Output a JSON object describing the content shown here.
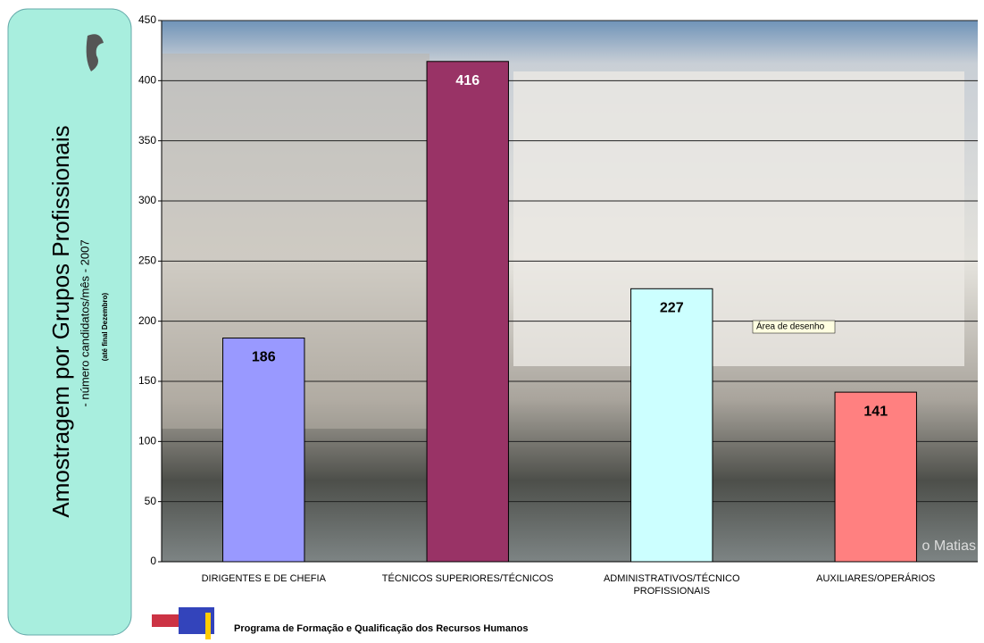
{
  "chart_data": {
    "type": "bar",
    "title": "Amostragem por Grupos Profissionais",
    "subtitle": "- número candidatos/mês - 2007",
    "note": "(até final Dezembro)",
    "categories": [
      "DIRIGENTES E DE CHEFIA",
      "TÉCNICOS SUPERIORES/TÉCNICOS",
      "ADMINISTRATIVOS/TÉCNICO PROFISSIONAIS",
      "AUXILIARES/OPERÁRIOS"
    ],
    "values": [
      186,
      416,
      227,
      141
    ],
    "colors": [
      "#9999ff",
      "#993366",
      "#ccffff",
      "#ff8080"
    ],
    "ylim": [
      0,
      450
    ],
    "yticks": [
      0,
      50,
      100,
      150,
      200,
      250,
      300,
      350,
      400,
      450
    ],
    "grid": true,
    "tooltip": "Área de desenho",
    "watermark": "o Matias"
  },
  "footer": "Programa de Formação e Qualificação dos Recursos Humanos"
}
